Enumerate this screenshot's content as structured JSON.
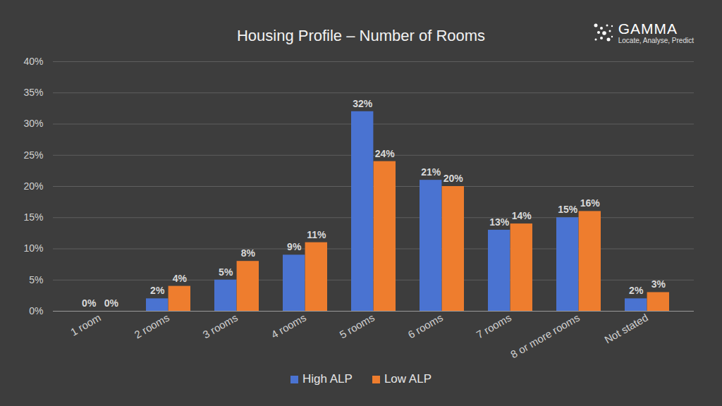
{
  "chart_data": {
    "type": "bar",
    "title": "Housing Profile – Number of Rooms",
    "annotations": [
      "GAMMA",
      "Locate, Analyse, Predict"
    ],
    "categories": [
      "1 room",
      "2 rooms",
      "3 rooms",
      "4 rooms",
      "5 rooms",
      "6 rooms",
      "7 rooms",
      "8 or more rooms",
      "Not stated"
    ],
    "series": [
      {
        "name": "High ALP",
        "color": "#4a73d1",
        "values": [
          0,
          2,
          5,
          9,
          32,
          21,
          13,
          15,
          2
        ],
        "value_labels": [
          "0%",
          "2%",
          "5%",
          "9%",
          "32%",
          "21%",
          "13%",
          "15%",
          "2%"
        ]
      },
      {
        "name": "Low ALP",
        "color": "#ee7d2e",
        "values": [
          0,
          4,
          8,
          11,
          24,
          20,
          14,
          16,
          3
        ],
        "value_labels": [
          "0%",
          "4%",
          "8%",
          "11%",
          "24%",
          "20%",
          "14%",
          "16%",
          "3%"
        ]
      }
    ],
    "ylim": [
      0,
      40
    ],
    "yticks": [
      {
        "value": 0,
        "label": "0%"
      },
      {
        "value": 5,
        "label": "5%"
      },
      {
        "value": 10,
        "label": "10%"
      },
      {
        "value": 15,
        "label": "15%"
      },
      {
        "value": 20,
        "label": "20%"
      },
      {
        "value": 25,
        "label": "25%"
      },
      {
        "value": 30,
        "label": "30%"
      },
      {
        "value": 35,
        "label": "35%"
      },
      {
        "value": 40,
        "label": "40%"
      }
    ],
    "grid": true,
    "legend": "bottom",
    "data_labels": true
  }
}
